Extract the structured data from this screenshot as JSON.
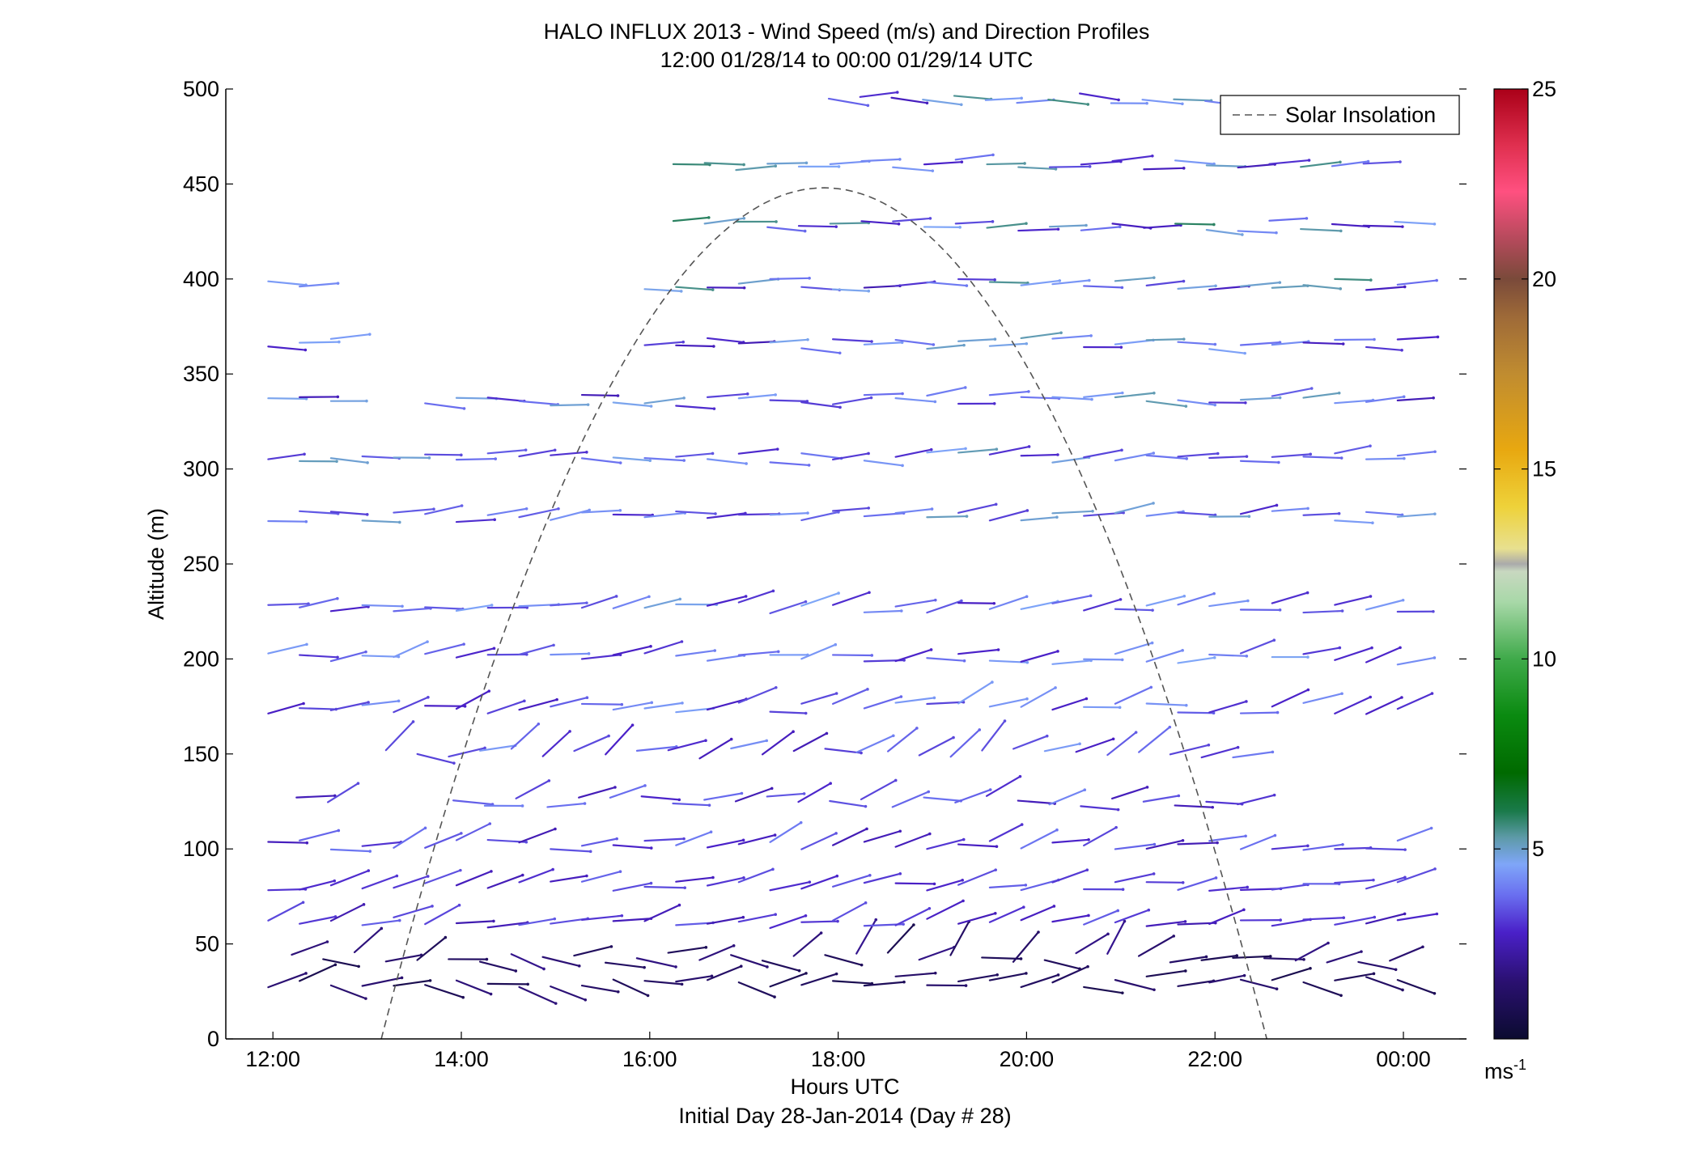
{
  "chart_data": {
    "type": "wind-barb-profile",
    "title": "HALO INFLUX 2013 - Wind Speed (m/s) and Direction Profiles",
    "subtitle": "12:00 01/28/14 to 00:00 01/29/14  UTC",
    "xlabel": "Hours UTC",
    "footer": "Initial Day 28-Jan-2014 (Day # 28)",
    "ylabel": "Altitude (m)",
    "xlim": [
      11.5,
      24.67
    ],
    "ylim": [
      0,
      500
    ],
    "x_ticks": [
      12,
      14,
      16,
      18,
      20,
      22,
      24
    ],
    "x_tick_labels": [
      "12:00",
      "14:00",
      "16:00",
      "18:00",
      "20:00",
      "22:00",
      "00:00"
    ],
    "y_ticks": [
      0,
      50,
      100,
      150,
      200,
      250,
      300,
      350,
      400,
      450,
      500
    ],
    "y_tick_labels": [
      "0",
      "50",
      "100",
      "150",
      "200",
      "250",
      "300",
      "350",
      "400",
      "450",
      "500"
    ],
    "legend": {
      "label": "Solar Insolation",
      "placement": "top-right"
    },
    "colorbar": {
      "label_base": "ms",
      "label_exp": "-1",
      "ticks": [
        5,
        10,
        15,
        20,
        25
      ],
      "tick_labels": [
        "5",
        "10",
        "15",
        "20",
        "25"
      ],
      "range": [
        0,
        25
      ],
      "stops": [
        {
          "v": 0,
          "c": "#0b0b30"
        },
        {
          "v": 1.5,
          "c": "#2a1070"
        },
        {
          "v": 2.8,
          "c": "#4a20c8"
        },
        {
          "v": 3.8,
          "c": "#6a70f0"
        },
        {
          "v": 4.6,
          "c": "#7fa6f8"
        },
        {
          "v": 5.3,
          "c": "#5d9aa8"
        },
        {
          "v": 6.0,
          "c": "#1a7a4a"
        },
        {
          "v": 7.0,
          "c": "#006a00"
        },
        {
          "v": 8.5,
          "c": "#0a8a10"
        },
        {
          "v": 10.0,
          "c": "#3faa4a"
        },
        {
          "v": 11.5,
          "c": "#a8d8a8"
        },
        {
          "v": 12.3,
          "c": "#c8d8c0"
        },
        {
          "v": 12.5,
          "c": "#aaaaaa"
        },
        {
          "v": 12.9,
          "c": "#e8e090"
        },
        {
          "v": 14.0,
          "c": "#eed23a"
        },
        {
          "v": 15.5,
          "c": "#e8a810"
        },
        {
          "v": 17.5,
          "c": "#c08c30"
        },
        {
          "v": 19.0,
          "c": "#9e6a38"
        },
        {
          "v": 20.0,
          "c": "#7a4a3a"
        },
        {
          "v": 21.0,
          "c": "#b24a5a"
        },
        {
          "v": 22.3,
          "c": "#ff5080"
        },
        {
          "v": 23.5,
          "c": "#e03050"
        },
        {
          "v": 25.0,
          "c": "#aa0018"
        }
      ]
    },
    "solar_insolation_curve": {
      "start_hour": 13.15,
      "end_hour": 22.55,
      "peak_hour": 17.85,
      "peak_altitude": 448
    },
    "profile_altitudes": [
      30,
      43,
      61,
      80,
      102,
      125,
      150,
      174,
      200,
      227,
      275,
      306,
      336,
      366,
      397,
      428,
      460,
      495
    ],
    "profiles": [
      {
        "alt": 30,
        "start": 11.95,
        "end": 23.95,
        "step": 0.333,
        "dir_deg": 270,
        "dir_var": 25,
        "speed": 1.2,
        "speed_var": 0.5
      },
      {
        "alt": 43,
        "start": 12.2,
        "end": 23.95,
        "step": 0.333,
        "dir_deg": 250,
        "dir_var": 45,
        "speed": 1.4,
        "speed_var": 0.6
      },
      {
        "alt": 61,
        "start": 11.95,
        "end": 23.95,
        "step": 0.333,
        "dir_deg": 255,
        "dir_var": 15,
        "speed": 3.0,
        "speed_var": 0.6
      },
      {
        "alt": 80,
        "start": 11.95,
        "end": 23.95,
        "step": 0.333,
        "dir_deg": 260,
        "dir_var": 12,
        "speed": 3.1,
        "speed_var": 0.6
      },
      {
        "alt": 102,
        "start": 11.95,
        "end": 23.95,
        "step": 0.333,
        "dir_deg": 255,
        "dir_var": 20,
        "speed": 3.3,
        "speed_var": 0.8
      },
      {
        "alt": 125,
        "start": 12.25,
        "end": 22.25,
        "step": 0.333,
        "dir_deg": 255,
        "dir_var": 25,
        "speed": 3.3,
        "speed_var": 0.8
      },
      {
        "alt": 150,
        "start": 13.2,
        "end": 22.25,
        "step": 0.333,
        "dir_deg": 250,
        "dir_var": 35,
        "speed": 3.5,
        "speed_var": 1.0
      },
      {
        "alt": 174,
        "start": 11.95,
        "end": 23.95,
        "step": 0.333,
        "dir_deg": 255,
        "dir_var": 18,
        "speed": 3.6,
        "speed_var": 0.9
      },
      {
        "alt": 200,
        "start": 11.95,
        "end": 23.95,
        "step": 0.333,
        "dir_deg": 260,
        "dir_var": 15,
        "speed": 3.7,
        "speed_var": 1.0
      },
      {
        "alt": 227,
        "start": 11.95,
        "end": 23.95,
        "step": 0.333,
        "dir_deg": 262,
        "dir_var": 12,
        "speed": 3.8,
        "speed_var": 1.1
      },
      {
        "alt": 275,
        "start": 11.95,
        "end": 23.95,
        "step": 0.333,
        "dir_deg": 265,
        "dir_var": 10,
        "speed": 4.0,
        "speed_var": 1.1
      },
      {
        "alt": 306,
        "start": 11.95,
        "end": 23.95,
        "step": 0.333,
        "dir_deg": 268,
        "dir_var": 10,
        "speed": 4.0,
        "speed_var": 1.2
      },
      {
        "alt": 336,
        "start": 11.95,
        "end": 23.95,
        "step": 0.333,
        "dir_deg": 268,
        "dir_var": 10,
        "speed": 3.9,
        "speed_var": 1.4
      },
      {
        "alt": 366,
        "start": 11.95,
        "end": 23.95,
        "step": 0.333,
        "dir_deg": 270,
        "dir_var": 8,
        "speed": 3.9,
        "speed_var": 1.5
      },
      {
        "alt": 397,
        "start": 11.95,
        "end": 23.95,
        "step": 0.333,
        "dir_deg": 270,
        "dir_var": 8,
        "speed": 4.0,
        "speed_var": 1.6
      },
      {
        "alt": 428,
        "start": 16.25,
        "end": 23.95,
        "step": 0.333,
        "dir_deg": 270,
        "dir_var": 8,
        "speed": 4.2,
        "speed_var": 1.8
      },
      {
        "alt": 460,
        "start": 16.25,
        "end": 23.6,
        "step": 0.333,
        "dir_deg": 270,
        "dir_var": 8,
        "speed": 4.1,
        "speed_var": 1.6
      },
      {
        "alt": 495,
        "start": 17.9,
        "end": 22.4,
        "step": 0.333,
        "dir_deg": 270,
        "dir_var": 10,
        "speed": 4.2,
        "speed_var": 1.6
      }
    ]
  }
}
